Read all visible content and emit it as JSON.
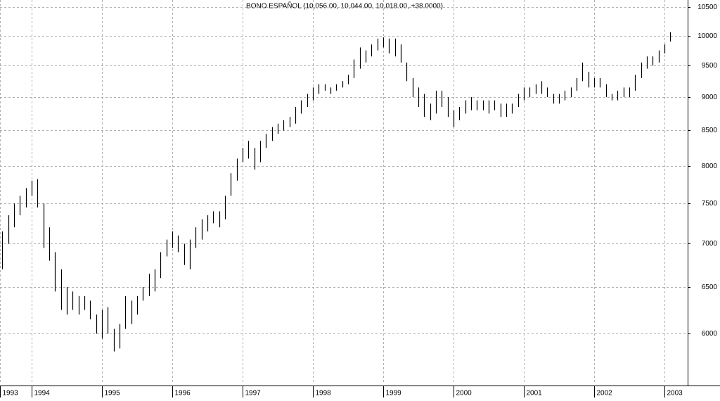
{
  "chart_data": {
    "type": "ohlc-bar",
    "title": "BONO ESPAÑOL (10,056.00, 10,044.00, 10,018.00, +38.0000)",
    "color": "#000000",
    "log_scale": true,
    "grid": true,
    "xlim": [
      1993.55,
      2003.33
    ],
    "ylim": [
      5510,
      10630
    ],
    "xticks": [
      {
        "value": 1993.55,
        "label": "1993"
      },
      1994,
      1995,
      1996,
      1997,
      1998,
      1999,
      2000,
      2001,
      2002,
      2003
    ],
    "yticks": [
      6000,
      6500,
      7000,
      7500,
      8000,
      8500,
      9000,
      9500,
      10000,
      10500
    ],
    "x": [
      1993.58,
      1993.67,
      1993.75,
      1993.83,
      1993.92,
      1994.0,
      1994.08,
      1994.17,
      1994.25,
      1994.33,
      1994.42,
      1994.5,
      1994.58,
      1994.67,
      1994.75,
      1994.83,
      1994.92,
      1995.0,
      1995.08,
      1995.17,
      1995.25,
      1995.33,
      1995.42,
      1995.5,
      1995.58,
      1995.67,
      1995.75,
      1995.83,
      1995.92,
      1996.0,
      1996.08,
      1996.17,
      1996.25,
      1996.33,
      1996.42,
      1996.5,
      1996.58,
      1996.67,
      1996.75,
      1996.83,
      1996.92,
      1997.0,
      1997.08,
      1997.17,
      1997.25,
      1997.33,
      1997.42,
      1997.5,
      1997.58,
      1997.67,
      1997.75,
      1997.83,
      1997.92,
      1998.0,
      1998.08,
      1998.17,
      1998.25,
      1998.33,
      1998.42,
      1998.5,
      1998.58,
      1998.67,
      1998.75,
      1998.83,
      1998.92,
      1999.0,
      1999.08,
      1999.17,
      1999.25,
      1999.33,
      1999.42,
      1999.5,
      1999.58,
      1999.67,
      1999.75,
      1999.83,
      1999.92,
      2000.0,
      2000.08,
      2000.17,
      2000.25,
      2000.33,
      2000.42,
      2000.5,
      2000.58,
      2000.67,
      2000.75,
      2000.83,
      2000.92,
      2001.0,
      2001.08,
      2001.17,
      2001.25,
      2001.33,
      2001.42,
      2001.5,
      2001.58,
      2001.67,
      2001.75,
      2001.83,
      2001.92,
      2002.0,
      2002.08,
      2002.17,
      2002.25,
      2002.33,
      2002.42,
      2002.5,
      2002.58,
      2002.67,
      2002.75,
      2002.83,
      2002.92,
      2003.0,
      2003.08
    ],
    "high": [
      7150,
      7350,
      7500,
      7600,
      7700,
      7800,
      7820,
      7500,
      7200,
      6900,
      6700,
      6500,
      6450,
      6400,
      6400,
      6350,
      6200,
      6250,
      6280,
      6050,
      6100,
      6400,
      6350,
      6400,
      6500,
      6650,
      6700,
      6900,
      7050,
      7150,
      7100,
      7000,
      7050,
      7200,
      7300,
      7350,
      7400,
      7400,
      7600,
      7900,
      8100,
      8250,
      8350,
      8250,
      8350,
      8450,
      8550,
      8600,
      8650,
      8700,
      8850,
      8950,
      9050,
      9150,
      9200,
      9200,
      9150,
      9200,
      9250,
      9350,
      9600,
      9800,
      9750,
      9850,
      9950,
      9970,
      9950,
      9950,
      9850,
      9550,
      9300,
      9150,
      9050,
      8900,
      9100,
      9100,
      9000,
      8800,
      8850,
      8950,
      9000,
      8950,
      8950,
      8950,
      8950,
      8900,
      8900,
      8900,
      9050,
      9150,
      9150,
      9200,
      9250,
      9150,
      9050,
      9050,
      9100,
      9150,
      9300,
      9550,
      9400,
      9300,
      9300,
      9200,
      9050,
      9100,
      9150,
      9150,
      9350,
      9550,
      9650,
      9650,
      9750,
      9850,
      10060
    ],
    "low": [
      6700,
      7000,
      7200,
      7350,
      7450,
      7600,
      7450,
      6950,
      6800,
      6450,
      6250,
      6200,
      6250,
      6200,
      6250,
      6150,
      6000,
      5950,
      6000,
      5820,
      5850,
      6050,
      6100,
      6200,
      6350,
      6400,
      6450,
      6600,
      6850,
      6950,
      6900,
      6750,
      6700,
      6950,
      7050,
      7150,
      7250,
      7200,
      7300,
      7600,
      7800,
      8050,
      8100,
      7950,
      8050,
      8250,
      8350,
      8450,
      8500,
      8550,
      8600,
      8750,
      8850,
      8950,
      9050,
      9100,
      9050,
      9100,
      9150,
      9200,
      9300,
      9450,
      9550,
      9650,
      9750,
      9800,
      9700,
      9650,
      9550,
      9250,
      9000,
      8850,
      8700,
      8650,
      8750,
      8850,
      8700,
      8550,
      8650,
      8750,
      8800,
      8800,
      8800,
      8750,
      8800,
      8700,
      8700,
      8750,
      8850,
      8950,
      9000,
      9050,
      9050,
      9000,
      8900,
      8900,
      8950,
      9000,
      9100,
      9250,
      9150,
      9150,
      9150,
      9000,
      8950,
      8950,
      9000,
      9000,
      9100,
      9300,
      9450,
      9500,
      9550,
      9700,
      9900
    ]
  }
}
